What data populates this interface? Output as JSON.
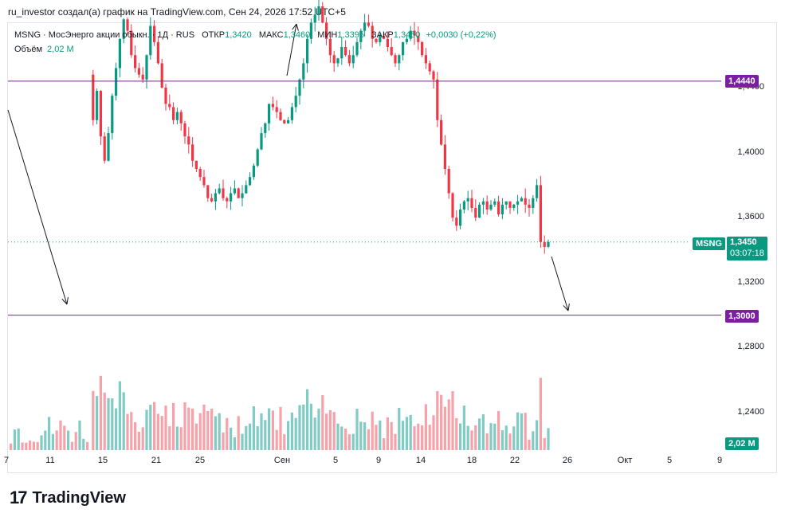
{
  "header": {
    "title": "ru_investor создал(а) график на TradingView.com, Сен 24, 2026 17:52 UTC+5"
  },
  "legend": {
    "symbol": "MSNG · МосЭнерго акции обыкн. · 1Д · RUS",
    "open_label": "ОТКР",
    "open_value": "1,3420",
    "high_label": "МАКС",
    "high_value": "1,3460",
    "low_label": "МИН",
    "low_value": "1,3395",
    "close_label": "ЗАКР",
    "close_value": "1,3450",
    "change": "+0,0030 (+0,22%)",
    "volume_label": "Объём",
    "volume_value": "2,02 M"
  },
  "price_badges": {
    "level_high": "1,4440",
    "level_low": "1,3000",
    "ticker": "MSNG",
    "last_price": "1,3450",
    "countdown": "03:07:18",
    "volume": "2,02 M"
  },
  "colors": {
    "up": "#089981",
    "down": "#f23645",
    "up_vol": "#80cbc4",
    "down_vol": "#f7a1a8",
    "level": "#7b1fa2"
  },
  "footer": {
    "brand": "TradingView"
  },
  "chart_data": {
    "type": "candlestick",
    "price_axis_ticks": [
      "1,4400",
      "1,4000",
      "1,3600",
      "1,3200",
      "1,2800",
      "1,2400"
    ],
    "date_axis_ticks": [
      "7",
      "11",
      "15",
      "21",
      "25",
      "Сен",
      "5",
      "9",
      "14",
      "18",
      "22",
      "26",
      "Окт",
      "5",
      "9"
    ],
    "horizontal_levels": [
      1.444,
      1.3
    ],
    "last_price": 1.345,
    "ohlc_path": [
      1.448,
      1.42,
      1.438,
      1.41,
      1.395,
      1.412,
      1.435,
      1.452,
      1.47,
      1.482,
      1.475,
      1.46,
      1.452,
      1.448,
      1.445,
      1.46,
      1.478,
      1.468,
      1.455,
      1.44,
      1.43,
      1.428,
      1.42,
      1.425,
      1.418,
      1.41,
      1.405,
      1.395,
      1.39,
      1.385,
      1.38,
      1.372,
      1.37,
      1.375,
      1.378,
      1.372,
      1.37,
      1.375,
      1.378,
      1.372,
      1.375,
      1.38,
      1.385,
      1.392,
      1.402,
      1.412,
      1.418,
      1.43,
      1.428,
      1.425,
      1.42,
      1.418,
      1.42,
      1.428,
      1.435,
      1.445,
      1.455,
      1.47,
      1.48,
      1.485,
      1.49,
      1.48,
      1.47,
      1.46,
      1.455,
      1.458,
      1.465,
      1.46,
      1.455,
      1.46,
      1.468,
      1.475,
      1.48,
      1.478,
      1.47,
      1.468,
      1.472,
      1.47,
      1.465,
      1.46,
      1.455,
      1.46,
      1.468,
      1.47,
      1.475,
      1.472,
      1.468,
      1.46,
      1.455,
      1.45,
      1.445,
      1.42,
      1.405,
      1.39,
      1.375,
      1.36,
      1.355,
      1.365,
      1.37,
      1.372,
      1.366,
      1.36,
      1.368,
      1.37,
      1.365,
      1.368,
      1.37,
      1.362,
      1.368,
      1.37,
      1.366,
      1.368,
      1.37,
      1.372,
      1.368,
      1.366,
      1.372,
      1.38,
      1.345,
      1.342,
      1.345
    ],
    "annotations": [
      "down-arrow-left",
      "down-arrow-right"
    ]
  }
}
